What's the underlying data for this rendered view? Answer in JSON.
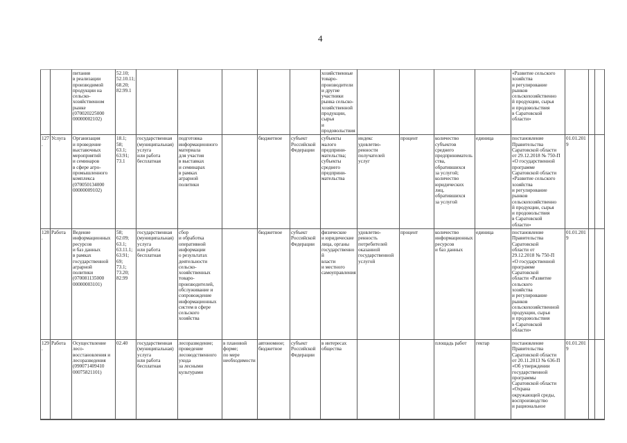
{
  "page_number": "4",
  "rows": [
    [
      "",
      "",
      "питания\nв реализации\nпроизводимой\nпродукции на\nсельско-\nхозяйственном\nрынке\n(070020225000\n00000002102)",
      "52.10;\n52.10.11;\n68.20;\n82.99.1",
      "",
      "",
      "",
      "",
      "",
      "хозяйственные\nтоваро-\nпроизводители\nи другие\nучастники\nрынка сельско-\nхозяйственной\nпродукции,\nсырья\nи продовольствия",
      "",
      "",
      "",
      "",
      "«Развитие сельского\nхозяйства\nи регулирование\nрынков\nсельскохозяйственно\nй продукции, сырья\nи продовольствия\nв Саратовской\nобласти»",
      "",
      "",
      ""
    ],
    [
      "127.",
      "Услуга",
      "Организация\nи проведение\nвыставочных\nмероприятий\nи семинаров\nв сфере агро-\nпромышленного\nкомплекса\n(070050134000\n00000009102)",
      "18.1;\n58;\n63.1;\n63.91;\n73.1",
      "государственная\n(муниципальная)\nуслуга\nили работа\nбесплатная",
      "подготовка\nинформационного\nматериала\nдля участия\nв выставках\nи семинарах\nв рамках\nаграрной\nполитики",
      "",
      "бюджетное",
      "субъект\nРоссийской\nФедерации",
      "субъекты\nмалого\nпредприни-\nмательства;\nсубъекты\nсреднего\nпредприни-\nмательства",
      "индекс\nудовлетво-\nренности\nполучателей\nуслуг",
      "процент",
      "количество\nсубъектов\nсреднего\nпредпринимательства,\nобратившихся\nза услугой;\nколичество\nюридических\nлиц,\nобратившихся\nза услугой",
      "единица",
      "постановление\nПравительства\nСаратовской области\nот 29.12.2018 № 750-П\n«О государственной\nпрограмме\nСаратовской области\n«Развитие сельского\nхозяйства\nи регулирование\nрынков\nсельскохозяйственно\nй продукции, сырья\nи продовольствия\nв Саратовской\nобласти»",
      "01.01.2019",
      "",
      ""
    ],
    [
      "128.",
      "Работа",
      "Ведение\nинформационных\nресурсов\nи баз данных\nв рамках\nгосударственной\nаграрной\nполитики\n(070081135000\n00000003101)",
      "58;\n62.09;\n63.1;\n63.11.1;\n63.91;\n69;\n73.1;\n73.20;\n82.99",
      "государственная\n(муниципальная)\nуслуга\nили работа\nбесплатная",
      "сбор\nи обработка\nоперативной\nинформации\nо результатах\nдеятельности\nсельско-\nхозяйственных\nтоваро-\nпроизводителей,\nобслуживание и\nсопровождение\nинформационных\nсистем в сфере\nсельского\nхозяйства",
      "",
      "бюджетное",
      "субъект\nРоссийской\nФедерации",
      "физические\nи юридические\nлица, органы\nгосударственной\nвласти\nи местного\nсамоуправления",
      "удовлетво-\nренность\nпотребителей\nоказанной\nгосударственной\nуслугой",
      "процент",
      "количество\nинформационных\nресурсов\nи баз данных",
      "единица",
      "постановление\nПравительства\nСаратовской\nобласти от\n29.12.2018 № 750-П\n«О государственной\nпрограмме\nСаратовской\nобласти «Развитие\nсельского\nхозяйства\nи регулирование\nрынков\nсельскохозяйственной\nпродукции, сырья\nи продовольствия\nв Саратовской\nобласти»",
      "01.01.2019",
      "",
      ""
    ],
    [
      "129.",
      "Работа",
      "Осуществление\nлесо-\nвосстановления и\nлесоразведения\n(090071409410\n00075821101)",
      "02.40",
      "государственная\n(муниципальная)\nуслуга\nили работа\nбесплатная",
      "лесоразведение;\nпроведение\nлесоводственного\nухода\nза лесными\nкультурами",
      "в плановой\nформе;\nпо мере\nнеобходимости",
      "автономное;\nбюджетное",
      "субъект\nРоссийской\nФедерации",
      "в интересах\nобщества",
      "",
      "",
      "площадь работ",
      "гектар",
      "постановление\nПравительства\nСаратовской области\nот 20.11.2013 № 636-П\n«Об утверждении\nгосударственной\nпрограммы\nСаратовской области\n«Охрана\nокружающей среды,\nвоспроизводство\nи рациональное",
      "01.01.2019",
      "",
      ""
    ]
  ]
}
